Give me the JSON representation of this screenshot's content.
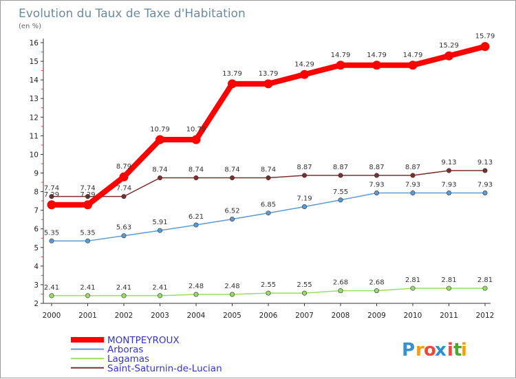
{
  "chart_data": {
    "type": "line",
    "title": "Evolution du Taux de Taxe d'Habitation",
    "subtitle": "(en %)",
    "x": [
      "2000",
      "2001",
      "2002",
      "2003",
      "2004",
      "2005",
      "2006",
      "2007",
      "2008",
      "2009",
      "2010",
      "2011",
      "2012"
    ],
    "ylim": [
      2,
      16
    ],
    "yticks": [
      2,
      3,
      4,
      5,
      6,
      7,
      8,
      9,
      10,
      11,
      12,
      13,
      14,
      15,
      16
    ],
    "grid": false,
    "legend_position": "bottom-left",
    "series": [
      {
        "name": "MONTPEYROUX",
        "color": "#ff0000",
        "text_color": "#3333cc",
        "values": [
          7.29,
          7.29,
          8.79,
          10.79,
          10.79,
          13.79,
          13.79,
          14.29,
          14.79,
          14.79,
          14.79,
          15.29,
          15.79
        ],
        "labels": [
          "7.29",
          "7.29",
          "8.79",
          "10.79",
          "10.79",
          "13.79",
          "13.79",
          "14.29",
          "14.79",
          "14.79",
          "14.79",
          "15.29",
          "15.79"
        ]
      },
      {
        "name": "Arboras",
        "color": "#5b9bd5",
        "text_color": "#3333cc",
        "values": [
          5.35,
          5.35,
          5.63,
          5.91,
          6.21,
          6.52,
          6.85,
          7.19,
          7.55,
          7.93,
          7.93,
          7.93,
          7.93
        ],
        "labels": [
          "5.35",
          "5.35",
          "5.63",
          "5.91",
          "6.21",
          "6.52",
          "6.85",
          "7.19",
          "7.55",
          "7.93",
          "7.93",
          "7.93",
          "7.93"
        ]
      },
      {
        "name": "Lagamas",
        "color": "#99dd66",
        "text_color": "#3333cc",
        "values": [
          2.41,
          2.41,
          2.41,
          2.41,
          2.48,
          2.48,
          2.55,
          2.55,
          2.68,
          2.68,
          2.81,
          2.81,
          2.81
        ],
        "labels": [
          "2.41",
          "2.41",
          "2.41",
          "2.41",
          "2.48",
          "2.48",
          "2.55",
          "2.55",
          "2.68",
          "2.68",
          "2.81",
          "2.81",
          "2.81"
        ]
      },
      {
        "name": "Saint-Saturnin-de-Lucian",
        "color": "#7a2e2e",
        "text_color": "#3333cc",
        "values": [
          7.74,
          7.74,
          7.74,
          8.74,
          8.74,
          8.74,
          8.74,
          8.87,
          8.87,
          8.87,
          8.87,
          9.13,
          9.13
        ],
        "labels": [
          "7.74",
          "7.74",
          "7.74",
          "8.74",
          "8.74",
          "8.74",
          "8.74",
          "8.87",
          "8.87",
          "8.87",
          "8.87",
          "9.13",
          "9.13"
        ]
      }
    ]
  },
  "logo": {
    "letters": [
      "P",
      "r",
      "o",
      "x",
      "i",
      "t",
      "i"
    ],
    "colors": [
      "#3a8fd0",
      "#f29b1a",
      "#e84a3c",
      "#2c8fd0",
      "#e84a3c",
      "#4aa832",
      "#f29b1a"
    ]
  }
}
